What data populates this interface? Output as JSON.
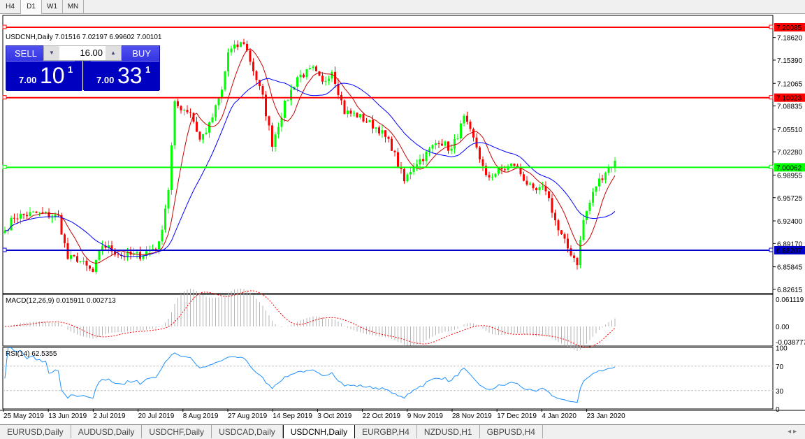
{
  "timeframes": [
    "H4",
    "D1",
    "W1",
    "MN"
  ],
  "active_timeframe": "D1",
  "chart_title": "USDCNH,Daily  7.01516 7.02197 6.99602 7.00101",
  "trade_panel": {
    "sell_label": "SELL",
    "buy_label": "BUY",
    "lot": "16.00",
    "sell_prefix": "7.00",
    "sell_big": "10",
    "sell_sup": "1",
    "buy_prefix": "7.00",
    "buy_big": "33",
    "buy_sup": "1"
  },
  "price_axis": [
    "7.18620",
    "7.15390",
    "7.12065",
    "7.08835",
    "7.05510",
    "7.02280",
    "6.98955",
    "6.95725",
    "6.92400",
    "6.89170",
    "6.85845",
    "6.82615"
  ],
  "hlines": [
    {
      "price": 7.20085,
      "label": "7.20085",
      "color": "#ff0000"
    },
    {
      "price": 7.10023,
      "label": "7.10023",
      "color": "#ff0000"
    },
    {
      "price": 7.00062,
      "label": "7.00062",
      "color": "#00ff00"
    },
    {
      "price": 6.88207,
      "label": "6.88207",
      "color": "#0000c8"
    }
  ],
  "macd": {
    "label": "MACD(12,26,9) 0.015911 0.002713",
    "axis": [
      "0.061119",
      "0.00",
      "-0.038777"
    ]
  },
  "rsi": {
    "label": "RSI(14) 62.5355",
    "axis": [
      "100",
      "70",
      "30",
      "0"
    ]
  },
  "dates": [
    "25 May 2019",
    "13 Jun 2019",
    "2 Jul 2019",
    "20 Jul 2019",
    "8 Aug 2019",
    "27 Aug 2019",
    "14 Sep 2019",
    "3 Oct 2019",
    "22 Oct 2019",
    "9 Nov 2019",
    "28 Nov 2019",
    "17 Dec 2019",
    "4 Jan 2020",
    "23 Jan 2020"
  ],
  "colors": {
    "bull": "#00ff00",
    "bear": "#ff0000",
    "fast_ma": "#c80000",
    "slow_ma": "#0000ff",
    "rsi": "#1e90ff"
  },
  "bottom_tabs": [
    "EURUSD,Daily",
    "AUDUSD,Daily",
    "USDCHF,Daily",
    "USDCAD,Daily",
    "USDCNH,Daily",
    "EURGBP,H4",
    "NZDUSD,H1",
    "GBPUSD,H4"
  ],
  "active_bottom_tab": "USDCNH,Daily",
  "chart_data": {
    "type": "candlestick",
    "symbol": "USDCNH",
    "timeframe": "Daily",
    "close_anchors": [
      [
        0,
        6.91
      ],
      [
        3,
        6.93
      ],
      [
        10,
        6.935
      ],
      [
        17,
        6.93
      ],
      [
        20,
        6.87
      ],
      [
        23,
        6.87
      ],
      [
        28,
        6.85
      ],
      [
        31,
        6.89
      ],
      [
        37,
        6.875
      ],
      [
        43,
        6.875
      ],
      [
        49,
        6.89
      ],
      [
        52,
        6.97
      ],
      [
        54,
        7.09
      ],
      [
        59,
        7.08
      ],
      [
        62,
        7.04
      ],
      [
        65,
        7.06
      ],
      [
        69,
        7.11
      ],
      [
        71,
        7.165
      ],
      [
        76,
        7.18
      ],
      [
        79,
        7.14
      ],
      [
        82,
        7.1
      ],
      [
        85,
        7.035
      ],
      [
        89,
        7.09
      ],
      [
        93,
        7.13
      ],
      [
        98,
        7.14
      ],
      [
        101,
        7.12
      ],
      [
        104,
        7.14
      ],
      [
        108,
        7.08
      ],
      [
        112,
        7.075
      ],
      [
        119,
        7.055
      ],
      [
        123,
        7.03
      ],
      [
        127,
        6.98
      ],
      [
        130,
        7.005
      ],
      [
        133,
        7.015
      ],
      [
        138,
        7.04
      ],
      [
        142,
        7.025
      ],
      [
        146,
        7.07
      ],
      [
        150,
        7.03
      ],
      [
        153,
        6.985
      ],
      [
        157,
        6.995
      ],
      [
        162,
        7.005
      ],
      [
        168,
        6.965
      ],
      [
        172,
        6.97
      ],
      [
        176,
        6.91
      ],
      [
        179,
        6.885
      ],
      [
        182,
        6.865
      ],
      [
        184,
        6.925
      ],
      [
        188,
        6.975
      ],
      [
        191,
        6.995
      ],
      [
        194,
        7.01
      ]
    ]
  }
}
